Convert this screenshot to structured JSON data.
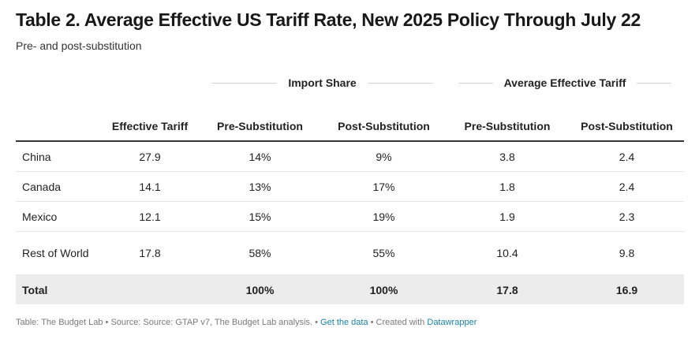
{
  "title": "Table 2. Average Effective US Tariff Rate, New 2025 Policy Through July 22",
  "subtitle": "Pre- and post-substitution",
  "group_headers": [
    "Import Share",
    "Average Effective Tariff"
  ],
  "columns": [
    "",
    "Effective Tariff",
    "Pre-Substitution",
    "Post-Substitution",
    "Pre-Substitution",
    "Post-Substitution"
  ],
  "chart_data": {
    "type": "table",
    "title": "Table 2. Average Effective US Tariff Rate, New 2025 Policy Through July 22",
    "subtitle": "Pre- and post-substitution",
    "column_groups": [
      {
        "name": "",
        "columns": [
          "Effective Tariff"
        ]
      },
      {
        "name": "Import Share",
        "columns": [
          "Pre-Substitution",
          "Post-Substitution"
        ]
      },
      {
        "name": "Average Effective Tariff",
        "columns": [
          "Pre-Substitution",
          "Post-Substitution"
        ]
      }
    ],
    "rows": [
      {
        "label": "China",
        "values": [
          "27.9",
          "14%",
          "9%",
          "3.8",
          "2.4"
        ]
      },
      {
        "label": "Canada",
        "values": [
          "14.1",
          "13%",
          "17%",
          "1.8",
          "2.4"
        ]
      },
      {
        "label": "Mexico",
        "values": [
          "12.1",
          "15%",
          "19%",
          "1.9",
          "2.3"
        ]
      },
      {
        "label": "Rest of World",
        "values": [
          "17.8",
          "58%",
          "55%",
          "10.4",
          "9.8"
        ]
      }
    ],
    "total": {
      "label": "Total",
      "values": [
        "",
        "100%",
        "100%",
        "17.8",
        "16.9"
      ]
    }
  },
  "footer": {
    "source": "Table: The Budget Lab • Source: Source: GTAP v7, The Budget Lab analysis. •",
    "get_data": "Get the data",
    "created_with": "• Created with",
    "datawrapper": "Datawrapper"
  }
}
